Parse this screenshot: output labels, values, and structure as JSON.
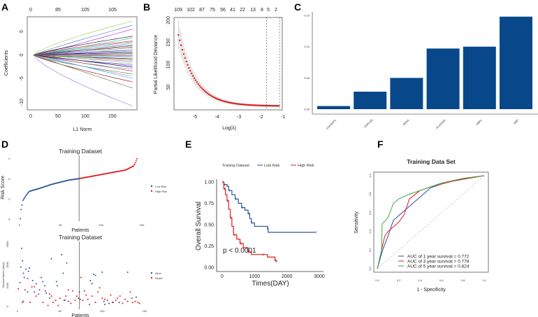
{
  "panels": {
    "A": "A",
    "B": "B",
    "C": "C",
    "D": "D",
    "E": "E",
    "F": "F"
  },
  "chart_data": [
    {
      "id": "A",
      "type": "line",
      "xlabel": "L1 Norm",
      "ylabel": "Coefficients",
      "xlim": [
        0,
        190
      ],
      "ylim": [
        -11,
        7.5
      ],
      "xticks": [
        "0",
        "50",
        "100",
        "150"
      ],
      "yticks": [
        "5",
        "0",
        "-5",
        "-10"
      ],
      "top_ticks": [
        "0",
        "85",
        "105",
        "105"
      ],
      "path_end_values": [
        7.2,
        6.3,
        5.5,
        4.0,
        3.6,
        3.0,
        2.8,
        2.5,
        2.2,
        2.0,
        1.7,
        1.5,
        1.2,
        1.0,
        0.8,
        0.5,
        0.3,
        0.1,
        -0.1,
        -0.3,
        -0.5,
        -0.8,
        -1.0,
        -1.3,
        -1.6,
        -2.0,
        -2.3,
        -2.6,
        -3.0,
        -3.4,
        -4.0,
        -4.5,
        -5.0,
        -5.7,
        -7.0,
        -10.8
      ],
      "colors": [
        "#9acd32",
        "#4169e1",
        "#a020f0",
        "#000000",
        "#20b2aa",
        "#dc143c",
        "#2e8b57",
        "#ff69b4",
        "#00bfff",
        "#8b0000",
        "#556b2f",
        "#9370db"
      ]
    },
    {
      "id": "B",
      "type": "line",
      "xlabel": "Log(λ)",
      "ylabel": "Partial Likelihood Deviance",
      "xlim": [
        -5.9,
        -1
      ],
      "ylim": [
        0,
        205
      ],
      "xticks": [
        "-5",
        "-4",
        "-3",
        "-2",
        "-1"
      ],
      "yticks": [
        "200",
        "150",
        "100",
        "50"
      ],
      "top_ticks": [
        "109",
        "102",
        "87",
        "75",
        "56",
        "41",
        "22",
        "13",
        "8",
        "5",
        "2"
      ],
      "x": [
        -5.75,
        -5.5,
        -5.25,
        -5,
        -4.75,
        -4.5,
        -4.25,
        -4,
        -3.75,
        -3.5,
        -3.25,
        -3,
        -2.5,
        -2,
        -1.5,
        -1.15
      ],
      "y": [
        167,
        122.6,
        90.5,
        67.3,
        50.6,
        38.5,
        29.8,
        23.4,
        18.9,
        15.6,
        13.2,
        11.5,
        9.3,
        8.2,
        8,
        8
      ],
      "vlines": [
        -1.75,
        -1.15
      ],
      "point_color": "#d7191c"
    },
    {
      "id": "C",
      "type": "bar",
      "categories": [
        "LGUSAP1",
        "PNPLA8",
        "DDX4",
        "PLA2G4A",
        "CBR1",
        "EBP"
      ],
      "values": [
        0.005,
        0.028,
        0.05,
        0.097,
        0.1,
        0.148
      ],
      "yticks": [
        "0.00",
        "0.05",
        "0.10",
        "0.15"
      ],
      "ylim": [
        0,
        0.15
      ],
      "color": "#08488a"
    },
    {
      "id": "D1",
      "type": "scatter",
      "title": "Training Dataset",
      "xlabel": "Patients",
      "ylabel": "Risk Score",
      "xlim": [
        0,
        150
      ],
      "ylim": [
        -4,
        2.2
      ],
      "xticks": [
        "0",
        "50",
        "100",
        "150"
      ],
      "yticks": [
        "2",
        "0",
        "-2",
        "-4"
      ],
      "cutoff": 73,
      "risk_curve": [
        [
          1,
          -3.9
        ],
        [
          2,
          -3
        ],
        [
          4,
          -2.1
        ],
        [
          8,
          -1.6
        ],
        [
          12,
          -1.2
        ],
        [
          25,
          -0.9
        ],
        [
          40,
          -0.5
        ],
        [
          60,
          -0.1
        ],
        [
          73,
          0.05
        ],
        [
          100,
          0.45
        ],
        [
          130,
          0.9
        ],
        [
          140,
          1.3
        ],
        [
          142,
          1.6
        ],
        [
          144,
          2.0
        ]
      ],
      "legend": [
        {
          "label": "Low Risk",
          "color": "#2a5599"
        },
        {
          "label": "High Risk",
          "color": "#e31a1c"
        }
      ]
    },
    {
      "id": "D2",
      "type": "scatter",
      "title": "Training Dataset",
      "xlabel": "Patients",
      "ylabel": "Survival times (days)",
      "xlim": [
        0,
        150
      ],
      "ylim": [
        0,
        3000
      ],
      "xticks": [
        "0",
        "50",
        "100",
        "150"
      ],
      "yticks": [
        "3000",
        "2000",
        "1000",
        "0"
      ],
      "cutoff": 73,
      "alive": [
        [
          5,
          2800
        ],
        [
          6,
          2200
        ],
        [
          4,
          1900
        ],
        [
          3,
          1150
        ],
        [
          7,
          1600
        ],
        [
          8,
          1400
        ],
        [
          10,
          1800
        ],
        [
          13,
          1700
        ],
        [
          14,
          1850
        ],
        [
          12,
          700
        ],
        [
          7,
          250
        ],
        [
          18,
          1250
        ],
        [
          22,
          1100
        ],
        [
          20,
          700
        ],
        [
          26,
          800
        ],
        [
          30,
          1200
        ],
        [
          32,
          1000
        ],
        [
          34,
          650
        ],
        [
          40,
          2300
        ],
        [
          38,
          400
        ],
        [
          46,
          1200
        ],
        [
          47,
          1000
        ],
        [
          52,
          2500
        ],
        [
          54,
          1600
        ],
        [
          58,
          2100
        ],
        [
          56,
          300
        ],
        [
          60,
          250
        ],
        [
          73,
          700
        ],
        [
          74,
          350
        ],
        [
          86,
          1250
        ],
        [
          88,
          1100
        ],
        [
          90,
          1550
        ],
        [
          92,
          1500
        ],
        [
          100,
          1650
        ],
        [
          102,
          250
        ],
        [
          103,
          100
        ],
        [
          108,
          150
        ],
        [
          112,
          200
        ],
        [
          120,
          200
        ],
        [
          130,
          1650
        ],
        [
          135,
          400
        ],
        [
          140,
          450
        ]
      ],
      "death": [
        [
          1,
          850
        ],
        [
          6,
          200
        ],
        [
          9,
          800
        ],
        [
          12,
          1350
        ],
        [
          15,
          200
        ],
        [
          17,
          950
        ],
        [
          20,
          950
        ],
        [
          22,
          500
        ],
        [
          25,
          600
        ],
        [
          28,
          1400
        ],
        [
          30,
          200
        ],
        [
          33,
          750
        ],
        [
          36,
          50
        ],
        [
          38,
          600
        ],
        [
          40,
          500
        ],
        [
          42,
          200
        ],
        [
          45,
          300
        ],
        [
          48,
          50
        ],
        [
          50,
          400
        ],
        [
          55,
          300
        ],
        [
          57,
          500
        ],
        [
          60,
          800
        ],
        [
          63,
          150
        ],
        [
          65,
          750
        ],
        [
          68,
          300
        ],
        [
          70,
          500
        ],
        [
          72,
          400
        ],
        [
          75,
          1400
        ],
        [
          77,
          300
        ],
        [
          79,
          750
        ],
        [
          81,
          550
        ],
        [
          83,
          350
        ],
        [
          85,
          100
        ],
        [
          88,
          500
        ],
        [
          92,
          200
        ],
        [
          95,
          700
        ],
        [
          97,
          900
        ],
        [
          100,
          400
        ],
        [
          103,
          350
        ],
        [
          106,
          300
        ],
        [
          110,
          550
        ],
        [
          113,
          200
        ],
        [
          116,
          300
        ],
        [
          118,
          400
        ],
        [
          121,
          500
        ],
        [
          124,
          150
        ],
        [
          127,
          350
        ],
        [
          130,
          250
        ],
        [
          133,
          700
        ],
        [
          136,
          200
        ],
        [
          139,
          250
        ],
        [
          142,
          200
        ],
        [
          144,
          150
        ]
      ],
      "legend": [
        {
          "label": "Alive",
          "color": "#2a5599"
        },
        {
          "label": "Death",
          "color": "#e31a1c"
        }
      ]
    },
    {
      "id": "E",
      "type": "line",
      "xlabel": "Times(DAY)",
      "ylabel": "Overall Survival",
      "xlim": [
        0,
        3000
      ],
      "ylim": [
        0,
        1
      ],
      "xticks": [
        "0",
        "1000",
        "2000",
        "3000"
      ],
      "yticks": [
        "1.00",
        "0.75",
        "0.50",
        "0.25",
        "0.00"
      ],
      "legend_title": "Traning Dataset",
      "annotation": "p < 0.0001",
      "series": [
        {
          "name": "Low Risk",
          "color": "#2a5599",
          "steps": [
            [
              0,
              1
            ],
            [
              50,
              0.97
            ],
            [
              150,
              0.95
            ],
            [
              200,
              0.9
            ],
            [
              300,
              0.85
            ],
            [
              400,
              0.8
            ],
            [
              500,
              0.75
            ],
            [
              600,
              0.7
            ],
            [
              700,
              0.67
            ],
            [
              800,
              0.63
            ],
            [
              850,
              0.57
            ],
            [
              900,
              0.52
            ],
            [
              1000,
              0.48
            ],
            [
              1400,
              0.45
            ],
            [
              1420,
              0.41
            ],
            [
              2880,
              0.41
            ]
          ]
        },
        {
          "name": "High Risk",
          "color": "#e31a1c",
          "steps": [
            [
              0,
              1
            ],
            [
              50,
              0.92
            ],
            [
              100,
              0.85
            ],
            [
              150,
              0.78
            ],
            [
              200,
              0.68
            ],
            [
              250,
              0.58
            ],
            [
              300,
              0.48
            ],
            [
              350,
              0.38
            ],
            [
              450,
              0.33
            ],
            [
              550,
              0.28
            ],
            [
              650,
              0.23
            ],
            [
              800,
              0.18
            ],
            [
              900,
              0.15
            ],
            [
              1250,
              0.15
            ],
            [
              1400,
              0.12
            ],
            [
              1630,
              0.08
            ],
            [
              1680,
              0.06
            ]
          ]
        }
      ]
    },
    {
      "id": "F",
      "type": "line",
      "title": "Training Data Set",
      "xlabel": "1 - Specificity",
      "ylabel": "Sensitivity",
      "xlim": [
        0,
        1
      ],
      "ylim": [
        0,
        1
      ],
      "xticks": [
        "0.0",
        "0.2",
        "0.4",
        "0.6",
        "0.8",
        "1.0"
      ],
      "yticks": [
        "0.0",
        "0.2",
        "0.4",
        "0.6",
        "0.8",
        "1.0"
      ],
      "series": [
        {
          "name": "AUC of 1 year survival = 0.772",
          "color": "#2a4fa0",
          "points": [
            [
              0,
              0
            ],
            [
              0.05,
              0.2
            ],
            [
              0.1,
              0.35
            ],
            [
              0.15,
              0.52
            ],
            [
              0.25,
              0.62
            ],
            [
              0.35,
              0.72
            ],
            [
              0.45,
              0.82
            ],
            [
              0.5,
              0.87
            ],
            [
              0.6,
              0.91
            ],
            [
              0.8,
              0.97
            ],
            [
              1,
              1
            ]
          ]
        },
        {
          "name": "AUC of 3 year survival = 0.778",
          "color": "#e31a1c",
          "points": [
            [
              0,
              0
            ],
            [
              0.07,
              0.35
            ],
            [
              0.1,
              0.4
            ],
            [
              0.2,
              0.5
            ],
            [
              0.25,
              0.58
            ],
            [
              0.3,
              0.75
            ],
            [
              0.4,
              0.84
            ],
            [
              0.5,
              0.88
            ],
            [
              0.7,
              0.94
            ],
            [
              1,
              1
            ]
          ]
        },
        {
          "name": "AUC of 5 year survival = 0.824",
          "color": "#3fa83f",
          "points": [
            [
              0,
              0
            ],
            [
              0.04,
              0.2
            ],
            [
              0.045,
              0.48
            ],
            [
              0.1,
              0.55
            ],
            [
              0.15,
              0.7
            ],
            [
              0.2,
              0.75
            ],
            [
              0.3,
              0.8
            ],
            [
              0.45,
              0.86
            ],
            [
              0.6,
              0.92
            ],
            [
              0.8,
              0.97
            ],
            [
              1,
              1
            ]
          ]
        }
      ]
    }
  ]
}
